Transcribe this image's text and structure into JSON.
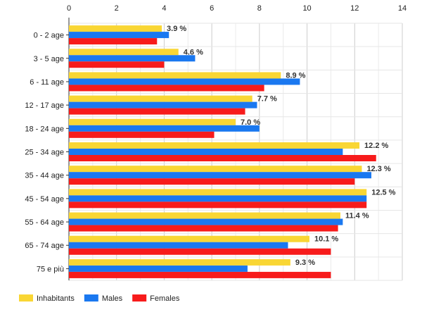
{
  "chart_data": {
    "type": "bar",
    "orientation": "horizontal",
    "title": "",
    "xlabel": "",
    "ylabel": "",
    "xlim": [
      0,
      14
    ],
    "x_ticks": [
      0,
      2,
      4,
      6,
      8,
      10,
      12,
      14
    ],
    "grid": true,
    "legend_position": "bottom-left",
    "categories": [
      "0 - 2 age",
      "3 - 5 age",
      "6 - 11 age",
      "12 - 17 age",
      "18 - 24 age",
      "25 - 34 age",
      "35 - 44 age",
      "45 - 54 age",
      "55 - 64 age",
      "65 - 74 age",
      "75 e più"
    ],
    "series": [
      {
        "name": "Inhabitants",
        "color": "#f9d634",
        "values": [
          3.9,
          4.6,
          8.9,
          7.7,
          7.0,
          12.2,
          12.3,
          12.5,
          11.4,
          10.1,
          9.3
        ]
      },
      {
        "name": "Males",
        "color": "#1a78f0",
        "values": [
          4.2,
          5.3,
          9.7,
          7.9,
          8.0,
          11.5,
          12.7,
          12.5,
          11.5,
          9.2,
          7.5
        ]
      },
      {
        "name": "Females",
        "color": "#f71b1b",
        "values": [
          3.7,
          4.0,
          8.2,
          7.4,
          6.1,
          12.9,
          12.0,
          12.5,
          11.3,
          11.0,
          11.0
        ]
      }
    ],
    "data_labels": [
      "3.9 %",
      "4.6 %",
      "8.9 %",
      "7.7 %",
      "7.0 %",
      "12.2 %",
      "12.3 %",
      "12.5 %",
      "11.4 %",
      "10.1 %",
      "9.3 %"
    ]
  }
}
